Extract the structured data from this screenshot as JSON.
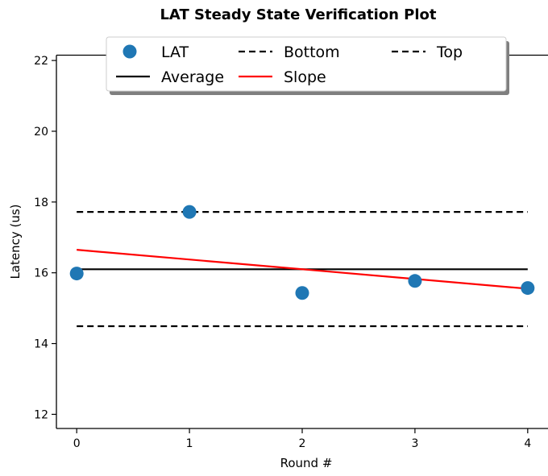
{
  "chart_data": {
    "type": "line",
    "title": "LAT Steady State Verification Plot",
    "xlabel": "Round #",
    "ylabel": "Latency (us)",
    "xlim": [
      -0.18,
      4.18
    ],
    "ylim": [
      11.6,
      22.15
    ],
    "x_ticks": [
      0,
      1,
      2,
      3,
      4
    ],
    "y_ticks": [
      12,
      14,
      16,
      18,
      20,
      22
    ],
    "grid": false,
    "legend_position": "top-center",
    "series": [
      {
        "name": "LAT",
        "kind": "scatter",
        "color": "#1f77b4",
        "x": [
          0,
          1,
          2,
          3,
          4
        ],
        "y": [
          15.98,
          17.72,
          15.43,
          15.77,
          15.57
        ]
      },
      {
        "name": "Average",
        "kind": "line",
        "style": "solid",
        "color": "#000000",
        "x": [
          0,
          4
        ],
        "y": [
          16.1,
          16.1
        ]
      },
      {
        "name": "Bottom",
        "kind": "line",
        "style": "dashed",
        "color": "#000000",
        "x": [
          0,
          4
        ],
        "y": [
          14.49,
          14.49
        ]
      },
      {
        "name": "Slope",
        "kind": "line",
        "style": "solid",
        "color": "#ff0000",
        "x": [
          0,
          4
        ],
        "y": [
          16.65,
          15.55
        ]
      },
      {
        "name": "Top",
        "kind": "line",
        "style": "dashed",
        "color": "#000000",
        "x": [
          0,
          4
        ],
        "y": [
          17.72,
          17.72
        ]
      }
    ]
  }
}
